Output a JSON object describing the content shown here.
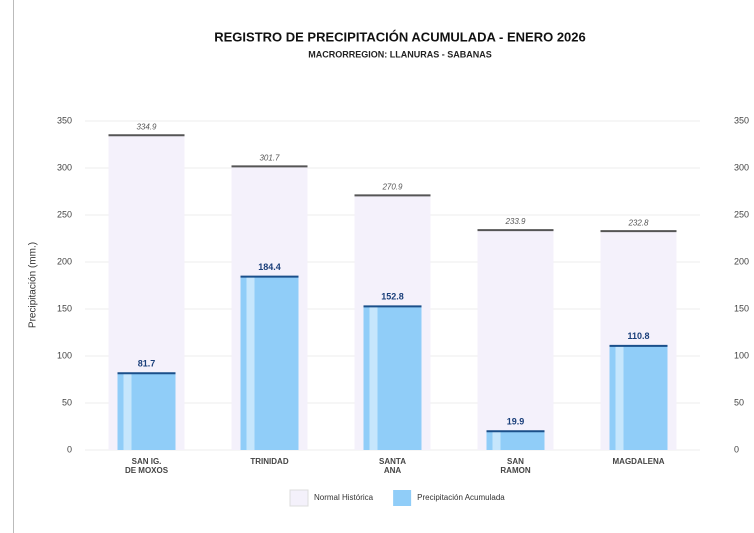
{
  "chart_data": {
    "type": "bar",
    "title": "REGISTRO DE PRECIPITACIÓN ACUMULADA - ENERO 2026",
    "subtitle": "MACRORREGION: LLANURAS - SABANAS",
    "ylabel": "Precipitación (mm.)",
    "categories": [
      "SAN IG.\nDE MOXOS",
      "TRINIDAD",
      "SANTA\nANA",
      "SAN\nRAMON",
      "MAGDALENA"
    ],
    "series": [
      {
        "name": "Normal Histórica",
        "color": "#f4f1fb",
        "edge": "#555555",
        "values": [
          334.9,
          301.7,
          270.9,
          233.9,
          232.8
        ]
      },
      {
        "name": "Precipitación Acumulada",
        "color": "#90cdf8",
        "edge": "#1a4f8a",
        "values": [
          81.7,
          184.4,
          152.8,
          19.9,
          110.8
        ]
      }
    ],
    "ylim": [
      0,
      350
    ],
    "yticks": [
      0,
      50,
      100,
      150,
      200,
      250,
      300,
      350
    ],
    "y2lim": [
      0,
      350
    ],
    "y2ticks": [
      0,
      50,
      100,
      150,
      200,
      250,
      300,
      350
    ],
    "grid": true,
    "legend": "bottom"
  }
}
